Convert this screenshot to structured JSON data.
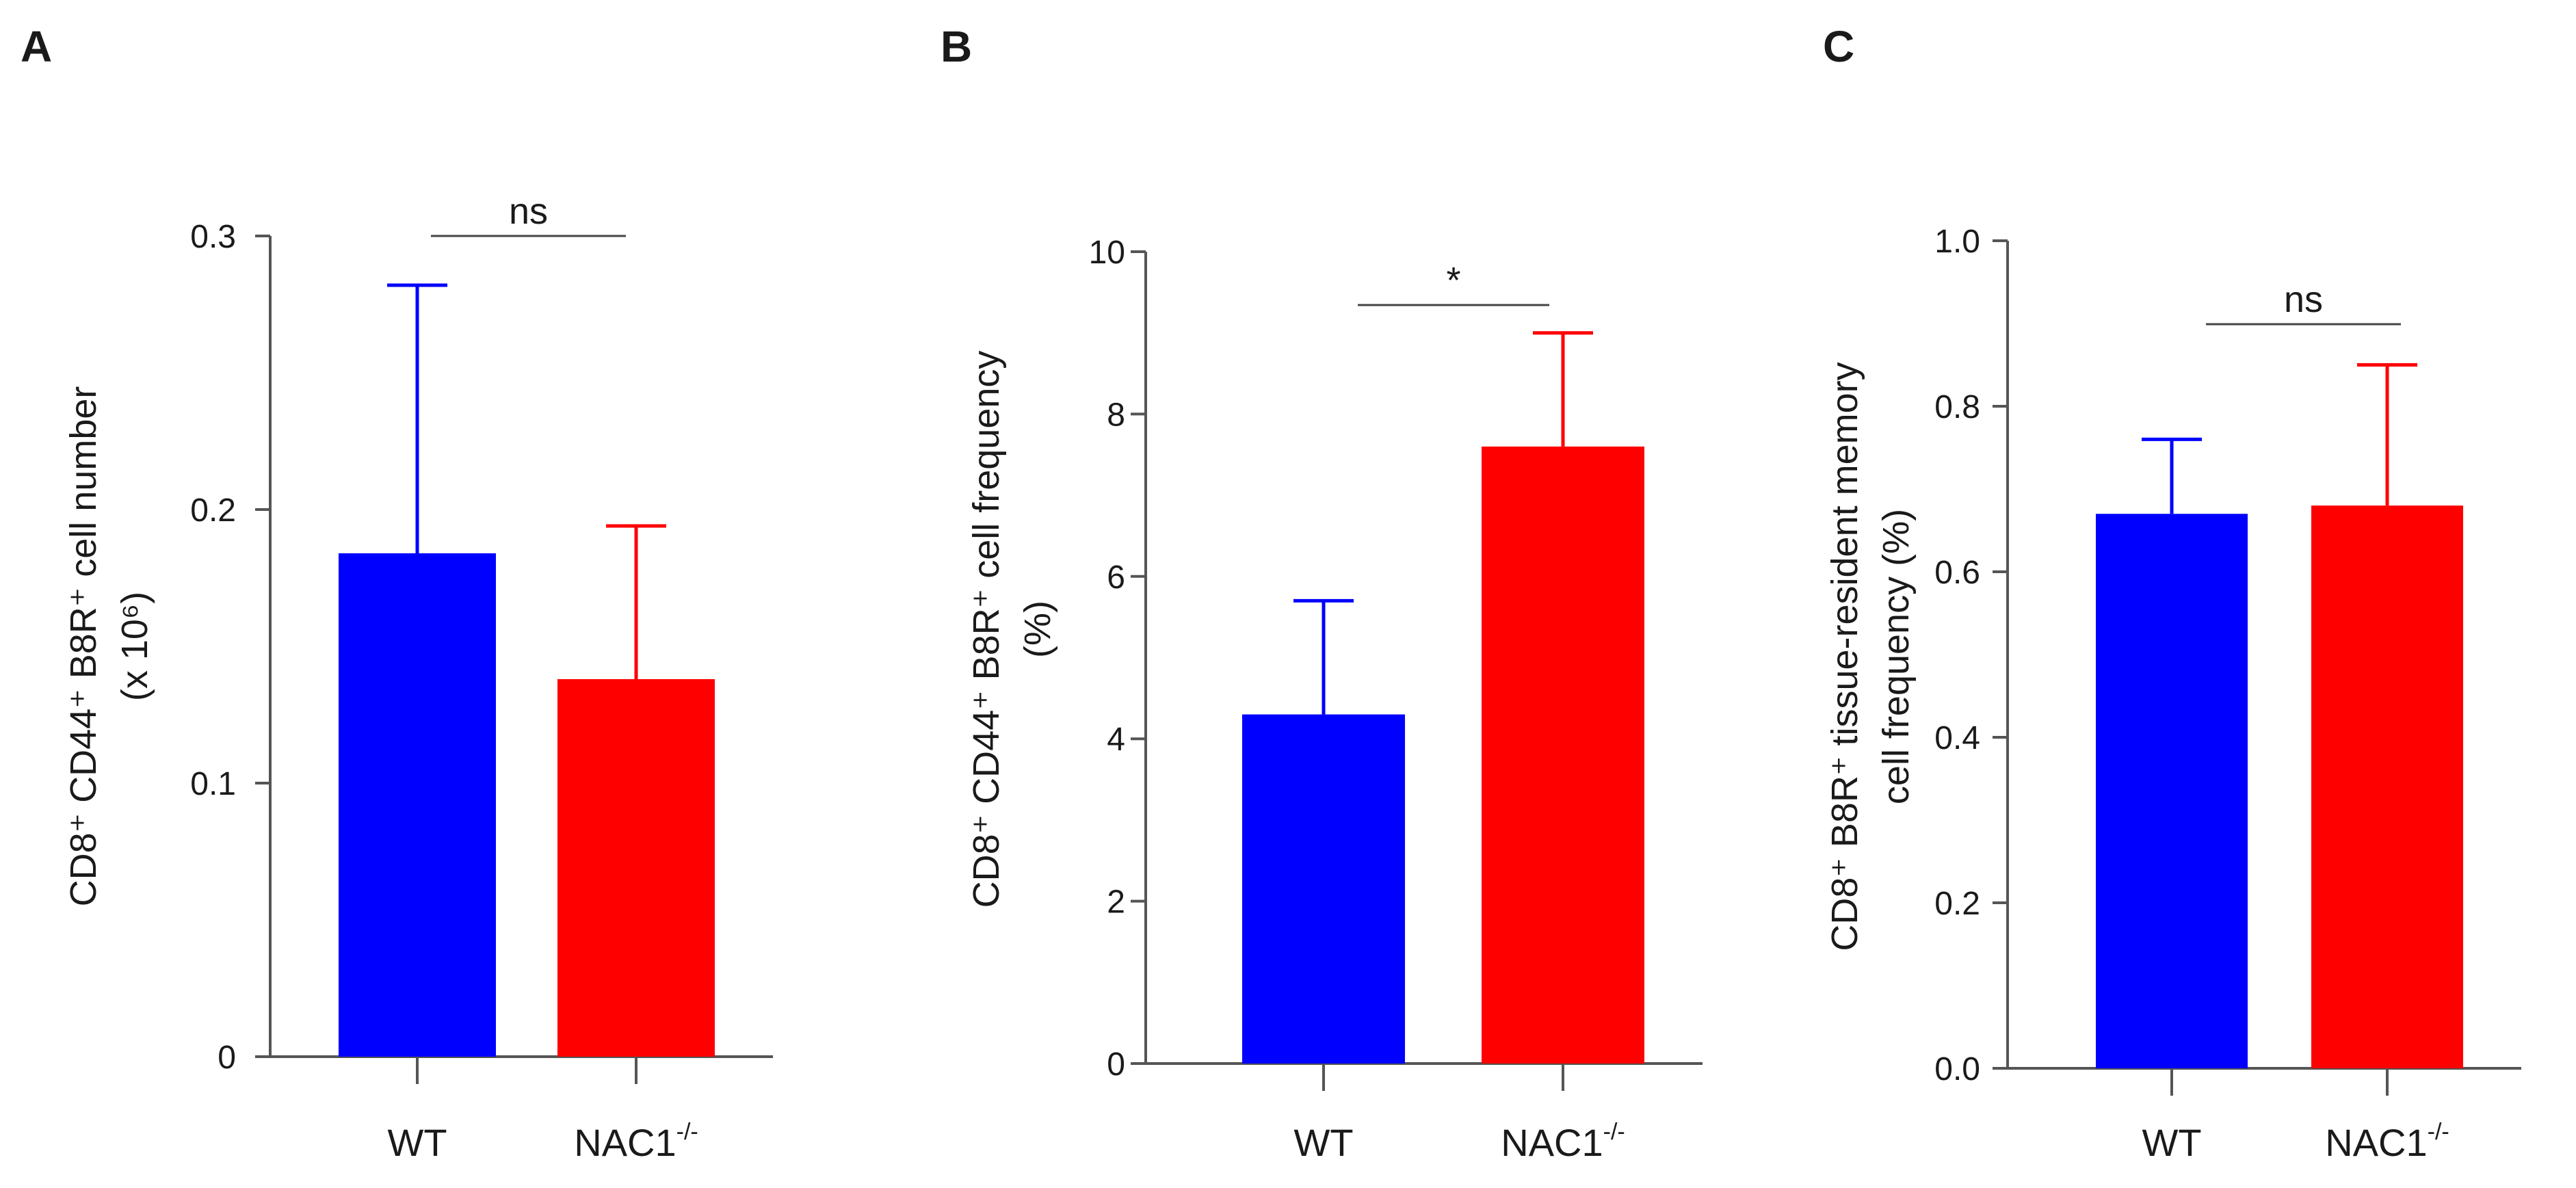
{
  "chart_data": [
    {
      "type": "bar",
      "panel": "A",
      "categories": [
        "WT",
        "NAC1-/-"
      ],
      "values": [
        0.184,
        0.138
      ],
      "errors": [
        0.098,
        0.056
      ],
      "ylabel_line1": "CD8⁺ CD44⁺ B8R⁺ cell number",
      "ylabel_line2": "(x 10⁶)",
      "ylim": [
        0,
        0.3
      ],
      "yticks": [
        0,
        0.1,
        0.2,
        0.3
      ],
      "ytick_labels": [
        "0",
        "0.1",
        "0.2",
        "0.3"
      ],
      "significance": "ns",
      "colors": [
        "#0000ff",
        "#ff0000"
      ]
    },
    {
      "type": "bar",
      "panel": "B",
      "categories": [
        "WT",
        "NAC1-/-"
      ],
      "values": [
        4.3,
        7.6
      ],
      "errors": [
        1.4,
        1.4
      ],
      "ylabel_line1": "CD8⁺ CD44⁺ B8R⁺ cell frequency",
      "ylabel_line2": "(%)",
      "ylim": [
        0,
        10
      ],
      "yticks": [
        0,
        2,
        4,
        6,
        8,
        10
      ],
      "ytick_labels": [
        "0",
        "2",
        "4",
        "6",
        "8",
        "10"
      ],
      "significance": "*",
      "colors": [
        "#0000ff",
        "#ff0000"
      ]
    },
    {
      "type": "bar",
      "panel": "C",
      "categories": [
        "WT",
        "NAC1-/-"
      ],
      "values": [
        0.67,
        0.68
      ],
      "errors": [
        0.09,
        0.17
      ],
      "ylabel_line1": "CD8⁺ B8R⁺ tissue-resident memory",
      "ylabel_line2": "cell frequency (%)",
      "ylim": [
        0,
        1.0
      ],
      "yticks": [
        0,
        0.2,
        0.4,
        0.6,
        0.8,
        1.0
      ],
      "ytick_labels": [
        "0.0",
        "0.2",
        "0.4",
        "0.6",
        "0.8",
        "1.0"
      ],
      "significance": "ns",
      "colors": [
        "#0000ff",
        "#ff0000"
      ]
    }
  ]
}
